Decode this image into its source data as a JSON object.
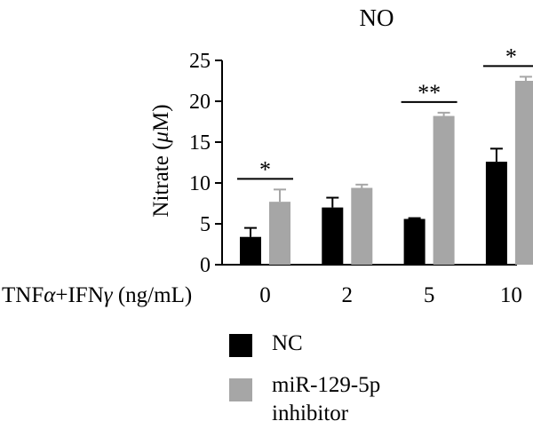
{
  "colors": {
    "NC": "#000000",
    "inhibitor": "#a6a6a6",
    "axis": "#000000"
  },
  "chart_data": {
    "type": "bar",
    "title": "NO",
    "xlabel": "TNFα+IFNγ (ng/mL)",
    "ylabel": "Nitrate (μM)",
    "ylim": [
      0,
      25
    ],
    "yticks": [
      "0",
      "5",
      "10",
      "15",
      "20",
      "25"
    ],
    "categories": [
      "0",
      "2",
      "5",
      "10"
    ],
    "series": [
      {
        "name": "NC",
        "color": "#000000",
        "values": [
          3.4,
          7.0,
          5.6,
          12.6
        ],
        "errors": [
          1.1,
          1.2,
          0.1,
          1.6
        ]
      },
      {
        "name": "miR-129-5p inhibitor",
        "color": "#a6a6a6",
        "values": [
          7.7,
          9.4,
          18.2,
          22.5
        ],
        "errors": [
          1.5,
          0.4,
          0.4,
          0.5
        ]
      }
    ],
    "significance": [
      {
        "category": "0",
        "label": "*"
      },
      {
        "category": "5",
        "label": "**"
      },
      {
        "category": "10",
        "label": "*"
      }
    ],
    "legend_position": "bottom-center",
    "grid": false
  }
}
